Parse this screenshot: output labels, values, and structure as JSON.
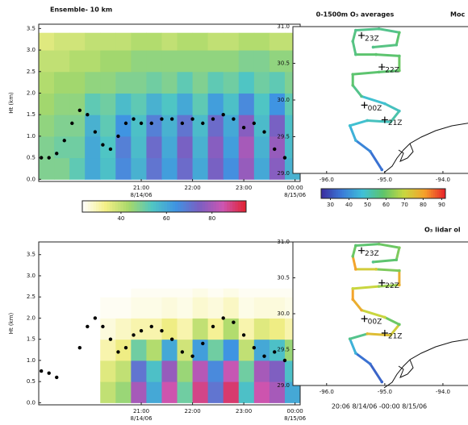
{
  "chart_data": [
    {
      "type": "heatmap",
      "title": "Ensemble- 10 km",
      "ylabel": "Ht (km)",
      "xlim": [
        19.0,
        24.1
      ],
      "ylim": [
        -0.05,
        3.6
      ],
      "xticks": [
        {
          "value": 21,
          "label": "21:00"
        },
        {
          "value": 22,
          "label": "22:00"
        },
        {
          "value": 23,
          "label": "23:00"
        },
        {
          "value": 24,
          "label": "00:00"
        }
      ],
      "xtick_dates": [
        {
          "value": 21,
          "label": "8/14/06"
        },
        {
          "value": 24,
          "label": "8/15/06"
        }
      ],
      "yticks": [
        {
          "value": 0,
          "label": "0.0"
        },
        {
          "value": 0.5,
          "label": "0.5"
        },
        {
          "value": 1,
          "label": "1.0"
        },
        {
          "value": 1.5,
          "label": "1.5"
        },
        {
          "value": 2,
          "label": "2.0"
        },
        {
          "value": 2.5,
          "label": "2.5"
        },
        {
          "value": 3,
          "label": "3.0"
        },
        {
          "value": 3.5,
          "label": "3.5"
        }
      ],
      "xbins": [
        19.0,
        19.3,
        19.6,
        19.9,
        20.2,
        20.5,
        20.8,
        21.1,
        21.4,
        21.7,
        22.0,
        22.3,
        22.6,
        22.9,
        23.2,
        23.5,
        23.8,
        24.1
      ],
      "ybins": [
        0,
        0.5,
        1.0,
        1.5,
        2.0,
        2.5,
        3.0,
        3.4
      ],
      "z": [
        [
          48,
          48,
          52,
          60,
          55,
          66,
          58,
          70,
          62,
          72,
          60,
          74,
          65,
          78,
          60,
          76,
          58
        ],
        [
          48,
          50,
          50,
          60,
          54,
          68,
          56,
          72,
          60,
          74,
          58,
          76,
          62,
          80,
          58,
          78,
          56
        ],
        [
          46,
          48,
          48,
          58,
          52,
          64,
          55,
          68,
          58,
          70,
          56,
          72,
          60,
          76,
          56,
          74,
          55
        ],
        [
          44,
          46,
          46,
          52,
          50,
          56,
          52,
          58,
          54,
          60,
          52,
          62,
          55,
          66,
          54,
          64,
          52
        ],
        [
          42,
          44,
          44,
          46,
          46,
          48,
          48,
          50,
          48,
          52,
          48,
          52,
          50,
          54,
          50,
          52,
          48
        ],
        [
          40,
          40,
          42,
          42,
          44,
          44,
          46,
          46,
          46,
          46,
          46,
          46,
          46,
          48,
          48,
          46,
          46
        ],
        [
          36,
          38,
          38,
          40,
          40,
          40,
          42,
          42,
          40,
          42,
          42,
          40,
          40,
          42,
          42,
          40,
          40
        ]
      ],
      "clim": [
        23,
        95
      ],
      "cticks": [
        40,
        60,
        80
      ],
      "colors": [
        "#ffffff",
        "#f4ef86",
        "#a6d86a",
        "#4fc6c4",
        "#3f93e2",
        "#7a5fc2",
        "#cc56b2",
        "#e2202e"
      ],
      "pbl": {
        "x": [
          19.05,
          19.2,
          19.35,
          19.5,
          19.65,
          19.8,
          19.95,
          20.1,
          20.25,
          20.4,
          20.55,
          20.7,
          20.85,
          21.0,
          21.2,
          21.4,
          21.6,
          21.8,
          22.0,
          22.2,
          22.4,
          22.6,
          22.8,
          23.0,
          23.2,
          23.4,
          23.6,
          23.8,
          24.0
        ],
        "values": [
          0.5,
          0.5,
          0.6,
          0.9,
          1.3,
          1.6,
          1.5,
          1.1,
          0.8,
          0.7,
          1.0,
          1.3,
          1.4,
          1.3,
          1.3,
          1.4,
          1.4,
          1.3,
          1.4,
          1.3,
          1.4,
          1.5,
          1.4,
          1.2,
          1.3,
          1.1,
          0.7,
          0.5,
          0.5
        ],
        "color": "#000000"
      }
    },
    {
      "type": "map",
      "title": "0-1500m O₃ averages",
      "title_cut": "Moc",
      "xlim": [
        -96.58,
        -93.43
      ],
      "ylim": [
        29.0,
        31.0
      ],
      "xticks": [
        {
          "value": -96,
          "label": "-96.0"
        },
        {
          "value": -95,
          "label": "-95.0"
        },
        {
          "value": -94,
          "label": "-94.0"
        }
      ],
      "yticks": [
        {
          "value": 29,
          "label": "29.0"
        },
        {
          "value": 29.5,
          "label": "29.5"
        },
        {
          "value": 30,
          "label": "30.0"
        },
        {
          "value": 30.5,
          "label": "30.5"
        },
        {
          "value": 31,
          "label": "31.0"
        }
      ],
      "lon": [
        -95.05,
        -95.25,
        -95.5,
        -95.6,
        -95.3,
        -94.9,
        -94.75,
        -95.0,
        -95.4,
        -95.55,
        -95.55,
        -95.1,
        -94.75,
        -94.75,
        -95.15,
        -95.5,
        -95.55,
        -95.5,
        -95.1,
        -94.75,
        -94.8,
        -95.2
      ],
      "lat": [
        29.05,
        29.3,
        29.45,
        29.65,
        29.72,
        29.7,
        29.85,
        29.95,
        30.05,
        30.2,
        30.35,
        30.38,
        30.4,
        30.6,
        30.62,
        30.62,
        30.8,
        30.95,
        30.97,
        30.92,
        30.75,
        30.72
      ],
      "values": [
        35,
        38,
        45,
        48,
        50,
        52,
        50,
        48,
        55,
        58,
        58,
        58,
        60,
        58,
        58,
        56,
        56,
        55,
        55,
        58,
        56,
        55
      ],
      "annotations": [
        {
          "text": "23Z",
          "x": -95.4,
          "y": 30.88
        },
        {
          "text": "22Z",
          "x": -95.05,
          "y": 30.45
        },
        {
          "text": "00Z",
          "x": -95.35,
          "y": 29.93
        },
        {
          "text": "21Z",
          "x": -95.0,
          "y": 29.73
        }
      ],
      "clim": [
        25,
        92
      ],
      "cticks": [
        30,
        40,
        50,
        60,
        70,
        80,
        90
      ],
      "colors": [
        "#3b2c9e",
        "#3a7ad8",
        "#3fc0d8",
        "#5ec46a",
        "#c8d840",
        "#f6a02a",
        "#e8202a"
      ]
    },
    {
      "type": "heatmap",
      "ylabel": "Ht (km)",
      "xlim": [
        19.0,
        24.1
      ],
      "ylim": [
        -0.05,
        3.8
      ],
      "xticks": [
        {
          "value": 21,
          "label": "21:00"
        },
        {
          "value": 22,
          "label": "22:00"
        },
        {
          "value": 23,
          "label": "23:00"
        },
        {
          "value": 24,
          "label": "00:00"
        }
      ],
      "xtick_dates": [
        {
          "value": 21,
          "label": "8/14/06"
        },
        {
          "value": 24,
          "label": "8/15/06"
        }
      ],
      "yticks": [
        {
          "value": 0,
          "label": "0.0"
        },
        {
          "value": 0.5,
          "label": "0.5"
        },
        {
          "value": 1,
          "label": "1.0"
        },
        {
          "value": 1.5,
          "label": "1.5"
        },
        {
          "value": 2,
          "label": "2.0"
        },
        {
          "value": 2.5,
          "label": "2.5"
        },
        {
          "value": 3,
          "label": "3.0"
        },
        {
          "value": 3.5,
          "label": "3.5"
        }
      ],
      "xbins": [
        19.0,
        19.3,
        19.6,
        19.9,
        20.2,
        20.5,
        20.8,
        21.1,
        21.4,
        21.7,
        22.0,
        22.3,
        22.6,
        22.9,
        23.2,
        23.5,
        23.8,
        24.1
      ],
      "ybins": [
        0,
        0.5,
        1.0,
        1.5,
        2.0,
        2.5,
        2.7
      ],
      "z": [
        [
          null,
          null,
          null,
          null,
          40,
          45,
          80,
          60,
          85,
          50,
          88,
          70,
          90,
          55,
          85,
          80,
          60
        ],
        [
          null,
          null,
          null,
          null,
          36,
          40,
          70,
          55,
          78,
          45,
          82,
          66,
          84,
          50,
          80,
          75,
          55
        ],
        [
          null,
          null,
          null,
          null,
          30,
          34,
          50,
          42,
          60,
          38,
          62,
          50,
          64,
          40,
          60,
          55,
          45
        ],
        [
          null,
          null,
          null,
          null,
          26,
          28,
          30,
          30,
          34,
          30,
          40,
          32,
          42,
          30,
          36,
          34,
          30
        ],
        [
          null,
          null,
          null,
          null,
          24,
          24,
          25,
          25,
          26,
          25,
          27,
          26,
          28,
          25,
          26,
          26,
          25
        ],
        [
          null,
          null,
          null,
          null,
          23,
          23,
          24,
          24,
          24,
          24,
          25,
          24,
          25,
          24,
          24,
          24,
          24
        ]
      ],
      "clim": [
        23,
        95
      ],
      "colors": [
        "#ffffff",
        "#f4ef86",
        "#a6d86a",
        "#4fc6c4",
        "#3f93e2",
        "#7a5fc2",
        "#cc56b2",
        "#e2202e"
      ],
      "pbl": {
        "x": [
          19.05,
          19.2,
          19.35,
          19.5,
          19.65,
          19.8,
          19.95,
          20.1,
          20.25,
          20.4,
          20.55,
          20.7,
          20.85,
          21.0,
          21.2,
          21.4,
          21.6,
          21.8,
          22.0,
          22.2,
          22.4,
          22.6,
          22.8,
          23.0,
          23.2,
          23.4,
          23.6,
          23.8,
          24.0
        ],
        "values": [
          0.75,
          0.7,
          0.6,
          null,
          null,
          1.3,
          1.8,
          2.0,
          1.8,
          1.5,
          1.2,
          1.3,
          1.6,
          1.7,
          1.8,
          1.7,
          1.5,
          1.2,
          1.1,
          1.4,
          1.8,
          2.0,
          1.9,
          1.6,
          1.3,
          1.1,
          1.2,
          1.0,
          1.2
        ],
        "color": "#000000"
      }
    },
    {
      "type": "map",
      "title_cut": "O₃ lidar ol",
      "caption": "20:06 8/14/06 -00:00 8/15/06",
      "xlim": [
        -96.58,
        -93.43
      ],
      "ylim": [
        29.0,
        31.0
      ],
      "xticks": [
        {
          "value": -96,
          "label": "-96.0"
        },
        {
          "value": -95,
          "label": "-95.0"
        },
        {
          "value": -94,
          "label": "-94.0"
        }
      ],
      "yticks": [
        {
          "value": 29,
          "label": "29.0"
        },
        {
          "value": 29.5,
          "label": "29.5"
        },
        {
          "value": 30,
          "label": "30.0"
        },
        {
          "value": 30.5,
          "label": "30.5"
        },
        {
          "value": 31,
          "label": "31.0"
        }
      ],
      "lon": [
        -95.05,
        -95.25,
        -95.5,
        -95.6,
        -95.3,
        -94.9,
        -94.75,
        -95.0,
        -95.4,
        -95.55,
        -95.55,
        -95.1,
        -94.75,
        -94.75,
        -95.15,
        -95.5,
        -95.55,
        -95.5,
        -95.1,
        -94.75,
        -94.8,
        -95.2
      ],
      "lat": [
        29.05,
        29.3,
        29.45,
        29.65,
        29.72,
        29.7,
        29.85,
        29.95,
        30.05,
        30.2,
        30.35,
        30.38,
        30.4,
        30.6,
        30.62,
        30.62,
        30.8,
        30.95,
        30.97,
        30.92,
        30.75,
        30.72
      ],
      "values": [
        33,
        35,
        45,
        55,
        75,
        72,
        60,
        70,
        78,
        80,
        70,
        65,
        78,
        62,
        72,
        80,
        60,
        58,
        60,
        62,
        58,
        55
      ],
      "annotations": [
        {
          "text": "23Z",
          "x": -95.4,
          "y": 30.88
        },
        {
          "text": "22Z",
          "x": -95.05,
          "y": 30.43
        },
        {
          "text": "00Z",
          "x": -95.35,
          "y": 29.93
        },
        {
          "text": "21Z",
          "x": -95.0,
          "y": 29.73
        }
      ],
      "clim": [
        25,
        92
      ],
      "colors": [
        "#3b2c9e",
        "#3a7ad8",
        "#3fc0d8",
        "#5ec46a",
        "#c8d840",
        "#f6a02a",
        "#e8202a"
      ]
    }
  ]
}
